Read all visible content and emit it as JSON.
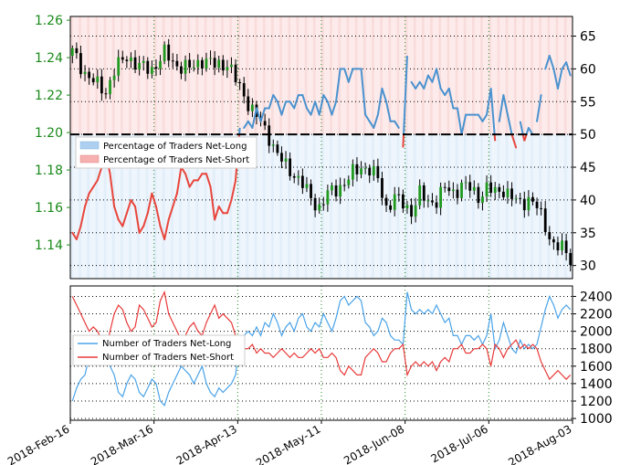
{
  "chart_data": [
    {
      "type": "candlestick",
      "y_left_ticks": [
        "1.14",
        "1.16",
        "1.18",
        "1.20",
        "1.22",
        "1.24",
        "1.26"
      ],
      "y_left_range": [
        1.122,
        1.262
      ],
      "y_right_ticks": [
        "30",
        "35",
        "40",
        "45",
        "50",
        "55",
        "60",
        "65"
      ],
      "y_right_range": [
        28,
        68
      ],
      "reference_line": 50,
      "x_ticks": [
        "2018-Feb-16",
        "2018-Mar-16",
        "2018-Apr-13",
        "2018-May-11",
        "2018-Jun-08",
        "2018-Jul-06",
        "2018-Aug-03"
      ],
      "legend": [
        {
          "label": "Percentage of Traders Net-Long",
          "color": "#aed0f0"
        },
        {
          "label": "Percentage of Traders Net-Short",
          "color": "#f6b0b0"
        }
      ],
      "price_anchors": [
        [
          0,
          1.243
        ],
        [
          3,
          1.232
        ],
        [
          6,
          1.225
        ],
        [
          8,
          1.222
        ],
        [
          10,
          1.233
        ],
        [
          13,
          1.241
        ],
        [
          16,
          1.235
        ],
        [
          19,
          1.234
        ],
        [
          22,
          1.242
        ],
        [
          25,
          1.236
        ],
        [
          28,
          1.234
        ],
        [
          31,
          1.239
        ],
        [
          34,
          1.236
        ],
        [
          37,
          1.237
        ],
        [
          39,
          1.228
        ],
        [
          41,
          1.22
        ],
        [
          43,
          1.212
        ],
        [
          45,
          1.205
        ],
        [
          47,
          1.198
        ],
        [
          49,
          1.188
        ],
        [
          51,
          1.182
        ],
        [
          53,
          1.178
        ],
        [
          55,
          1.172
        ],
        [
          57,
          1.165
        ],
        [
          59,
          1.16
        ],
        [
          61,
          1.167
        ],
        [
          63,
          1.17
        ],
        [
          65,
          1.173
        ],
        [
          67,
          1.178
        ],
        [
          69,
          1.182
        ],
        [
          71,
          1.18
        ],
        [
          73,
          1.175
        ],
        [
          75,
          1.16
        ],
        [
          77,
          1.165
        ],
        [
          79,
          1.162
        ],
        [
          81,
          1.158
        ],
        [
          83,
          1.167
        ],
        [
          85,
          1.163
        ],
        [
          87,
          1.164
        ],
        [
          89,
          1.17
        ],
        [
          91,
          1.168
        ],
        [
          93,
          1.172
        ],
        [
          95,
          1.17
        ],
        [
          97,
          1.166
        ],
        [
          99,
          1.17
        ],
        [
          101,
          1.168
        ],
        [
          103,
          1.17
        ],
        [
          105,
          1.165
        ],
        [
          107,
          1.162
        ],
        [
          109,
          1.165
        ],
        [
          111,
          1.16
        ],
        [
          113,
          1.15
        ],
        [
          115,
          1.14
        ],
        [
          117,
          1.138
        ],
        [
          119,
          1.133
        ]
      ],
      "sentiment_pct_long": [
        35,
        34,
        36,
        39,
        41,
        42,
        43,
        45,
        47,
        44,
        39,
        37,
        36,
        38,
        40,
        39,
        35,
        36,
        38,
        41,
        39,
        36,
        34,
        37,
        39,
        41,
        45,
        44,
        42,
        43,
        43,
        44,
        44,
        42,
        37,
        39,
        38,
        38,
        40,
        43,
        51,
        51,
        52,
        51,
        54,
        52,
        54,
        54,
        56,
        55,
        53,
        55,
        55,
        54,
        56,
        56,
        54,
        53,
        55,
        53,
        56,
        55,
        53,
        55,
        60,
        60,
        58,
        60,
        60,
        60,
        53,
        52,
        51,
        53,
        57,
        55,
        52,
        52,
        51,
        48,
        62,
        58,
        57,
        58,
        57,
        59,
        58,
        60,
        57,
        56,
        57,
        54,
        54,
        50,
        53,
        53,
        53,
        53,
        52,
        53,
        57,
        49,
        52,
        56,
        53,
        50,
        48,
        52,
        49,
        51,
        50,
        52,
        56,
        60,
        62,
        60,
        57,
        60,
        61,
        59
      ],
      "sentiment_gaps_after": [
        40,
        78,
        80,
        101,
        106,
        110,
        112
      ]
    },
    {
      "type": "line",
      "y_ticks": [
        "1000",
        "1200",
        "1400",
        "1600",
        "1800",
        "2000",
        "2200",
        "2400"
      ],
      "ylim": [
        980,
        2520
      ],
      "legend_position": "center-left",
      "series": [
        {
          "name": "Number of Traders Net-Long",
          "color": "#4aa3e8",
          "values": [
            1200,
            1350,
            1450,
            1500,
            1700,
            1650,
            1750,
            1800,
            1700,
            1600,
            1500,
            1300,
            1250,
            1400,
            1500,
            1450,
            1300,
            1250,
            1350,
            1450,
            1400,
            1200,
            1150,
            1300,
            1400,
            1500,
            1600,
            1550,
            1500,
            1400,
            1500,
            1600,
            1400,
            1300,
            1250,
            1350,
            1300,
            1350,
            1400,
            1500,
            1900,
            1950,
            2000,
            1950,
            2050,
            1950,
            2100,
            2050,
            2200,
            2100,
            1950,
            2050,
            2100,
            2000,
            2150,
            2200,
            2050,
            2000,
            2100,
            2050,
            2200,
            2100,
            2000,
            2150,
            2350,
            2400,
            2300,
            2350,
            2400,
            2350,
            2100,
            2050,
            1950,
            2000,
            2150,
            2100,
            1950,
            1900,
            1900,
            1850,
            2450,
            2250,
            2200,
            2250,
            2200,
            2250,
            2200,
            2300,
            2200,
            2100,
            2150,
            1950,
            1950,
            1850,
            1950,
            1950,
            1900,
            1950,
            1850,
            1950,
            2200,
            1800,
            1900,
            2100,
            1950,
            1800,
            1750,
            1900,
            1800,
            1850,
            1800,
            1850,
            2050,
            2250,
            2400,
            2300,
            2150,
            2250,
            2300,
            2250
          ]
        },
        {
          "name": "Number of Traders Net-Short",
          "color": "#e83a3a",
          "values": [
            2400,
            2300,
            2200,
            2100,
            2000,
            2050,
            2000,
            1900,
            1800,
            2000,
            2200,
            2300,
            2250,
            2100,
            2000,
            2050,
            2300,
            2250,
            2150,
            2050,
            2100,
            2350,
            2450,
            2200,
            2100,
            2000,
            1900,
            1950,
            2050,
            2100,
            2000,
            1950,
            2100,
            2200,
            2300,
            2150,
            2200,
            2150,
            2100,
            1950,
            1850,
            1800,
            1800,
            1850,
            1750,
            1800,
            1750,
            1750,
            1700,
            1750,
            1800,
            1750,
            1700,
            1750,
            1700,
            1700,
            1750,
            1800,
            1750,
            1800,
            1700,
            1700,
            1750,
            1700,
            1550,
            1500,
            1600,
            1550,
            1500,
            1500,
            1700,
            1750,
            1800,
            1750,
            1650,
            1650,
            1750,
            1800,
            1800,
            1850,
            1500,
            1600,
            1650,
            1600,
            1650,
            1600,
            1650,
            1550,
            1650,
            1700,
            1650,
            1800,
            1800,
            1850,
            1750,
            1750,
            1800,
            1800,
            1850,
            1800,
            1600,
            1850,
            1800,
            1700,
            1800,
            1850,
            1900,
            1800,
            1850,
            1800,
            1850,
            1800,
            1650,
            1550,
            1450,
            1500,
            1550,
            1500,
            1450,
            1500
          ]
        }
      ]
    }
  ]
}
